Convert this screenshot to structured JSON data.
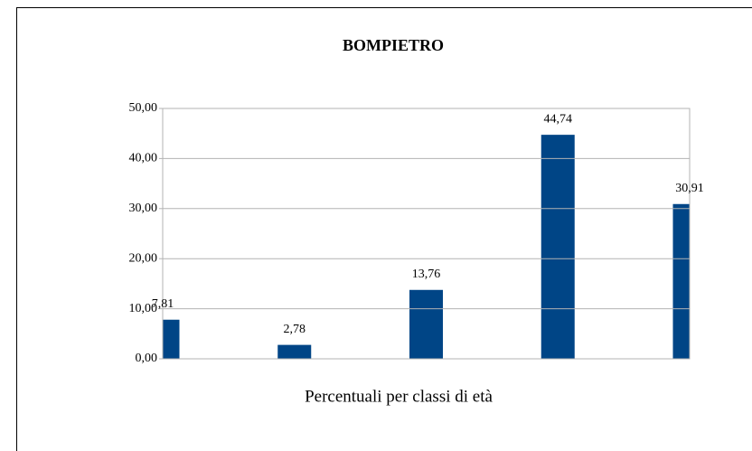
{
  "chart_data": {
    "type": "bar",
    "title": "BOMPIETRO",
    "x_label": "Percentuali per classi di età",
    "categories": [
      null,
      null,
      null,
      null,
      null
    ],
    "values": [
      7.81,
      2.78,
      13.76,
      44.74,
      30.91
    ],
    "value_labels": [
      "7,81",
      "2,78",
      "13,76",
      "44,74",
      "30,91"
    ],
    "color": "#004586",
    "ylim": [
      0,
      50
    ],
    "yticks": [
      {
        "value": 0,
        "label": "0,00"
      },
      {
        "value": 10,
        "label": "10,00"
      },
      {
        "value": 20,
        "label": "20,00"
      },
      {
        "value": 30,
        "label": "30,00"
      },
      {
        "value": 40,
        "label": "40,00"
      },
      {
        "value": 50,
        "label": "50,00"
      }
    ],
    "grid": true
  }
}
